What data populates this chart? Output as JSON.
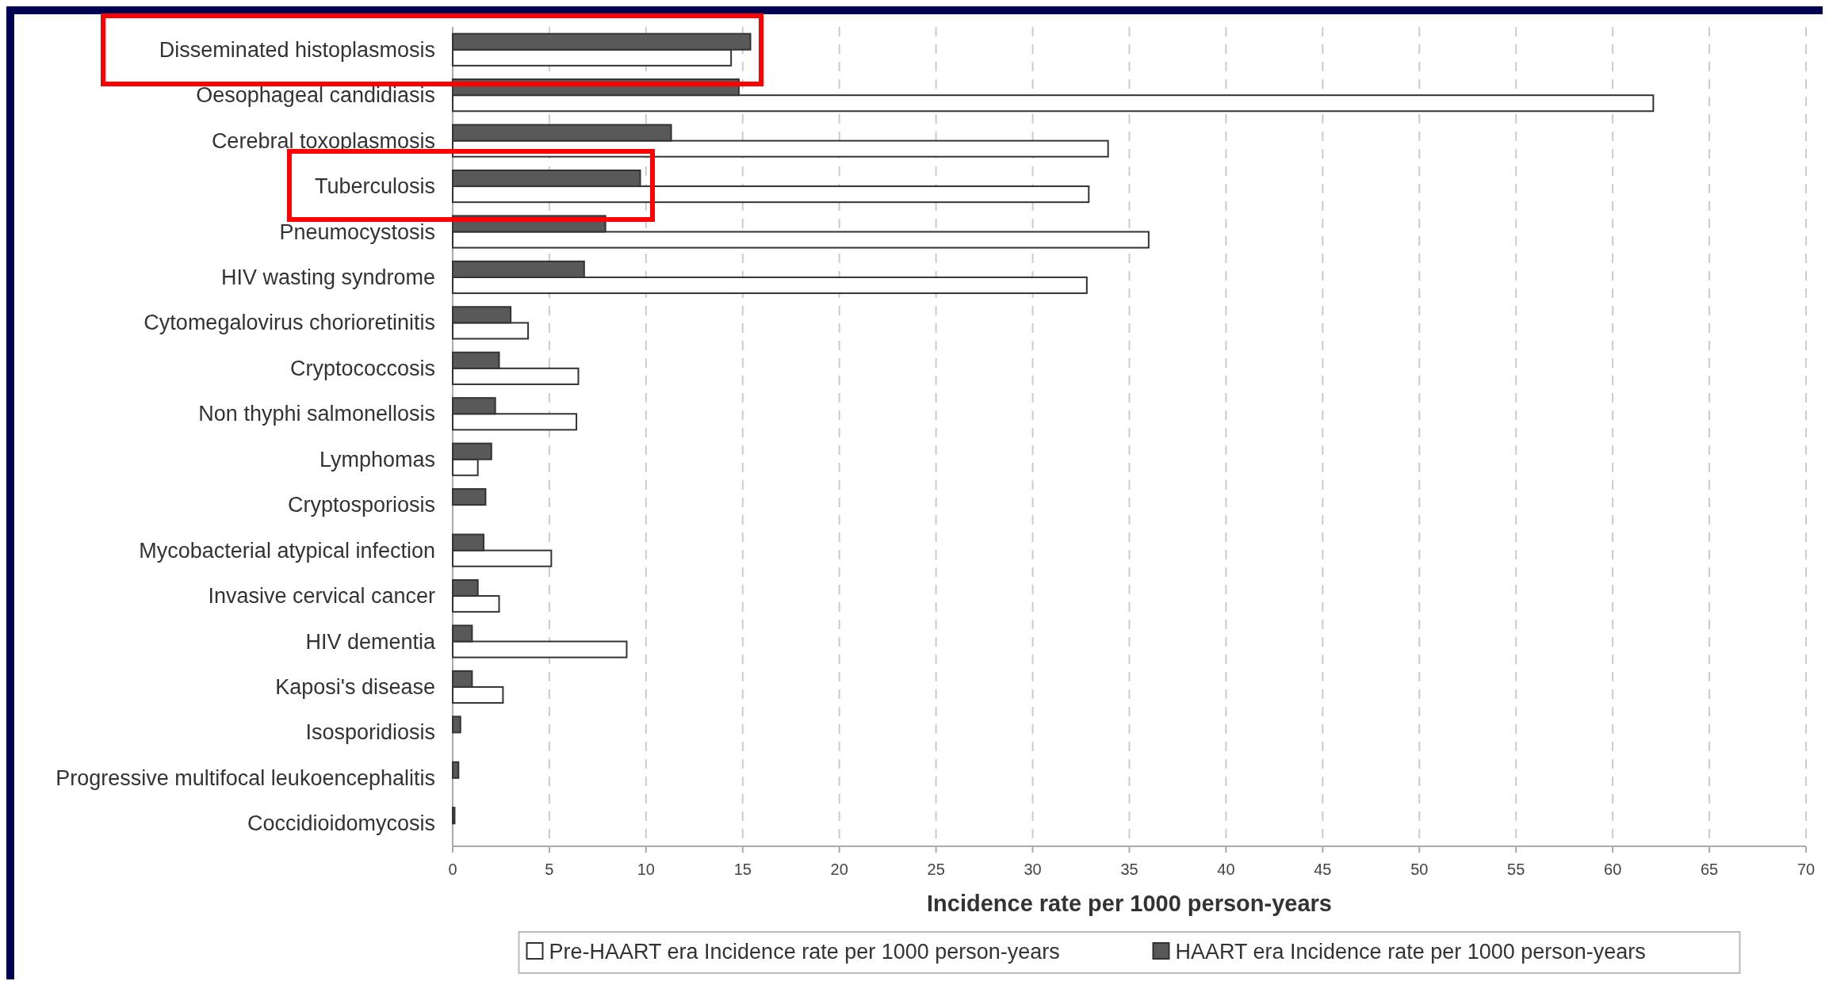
{
  "chart_data": {
    "type": "bar",
    "orientation": "horizontal",
    "xlabel": "Incidence rate per 1000 person-years",
    "categories": [
      "Disseminated histoplasmosis",
      "Oesophageal candidiasis",
      "Cerebral toxoplasmosis",
      "Tuberculosis",
      "Pneumocystosis",
      "HIV wasting syndrome",
      "Cytomegalovirus chorioretinitis",
      "Cryptococcosis",
      "Non thyphi salmonellosis",
      "Lymphomas",
      "Cryptosporiosis",
      "Mycobacterial atypical infection",
      "Invasive cervical cancer",
      "HIV dementia",
      "Kaposi's disease",
      "Isosporidiosis",
      "Progressive multifocal leukoencephalitis",
      "Coccidioidomycosis"
    ],
    "series": [
      {
        "name": "Pre-HAART era Incidence rate per 1000 person-years",
        "color": "#ffffff",
        "values": [
          14.4,
          62.1,
          33.9,
          32.9,
          36.0,
          32.8,
          3.9,
          6.5,
          6.4,
          1.3,
          0,
          5.1,
          2.4,
          9.0,
          2.6,
          0,
          0,
          0
        ]
      },
      {
        "name": "HAART era Incidence rate per 1000 person-years",
        "color": "#595959",
        "values": [
          15.4,
          14.8,
          11.3,
          9.7,
          7.9,
          6.8,
          3.0,
          2.4,
          2.2,
          2.0,
          1.7,
          1.6,
          1.3,
          1.0,
          1.0,
          0.4,
          0.3,
          0.1
        ]
      }
    ],
    "xlim": [
      0,
      70
    ],
    "xticks": [
      0,
      5,
      10,
      15,
      20,
      25,
      30,
      35,
      40,
      45,
      50,
      55,
      60,
      65,
      70
    ],
    "grid": "x",
    "legend": "bottom"
  }
}
